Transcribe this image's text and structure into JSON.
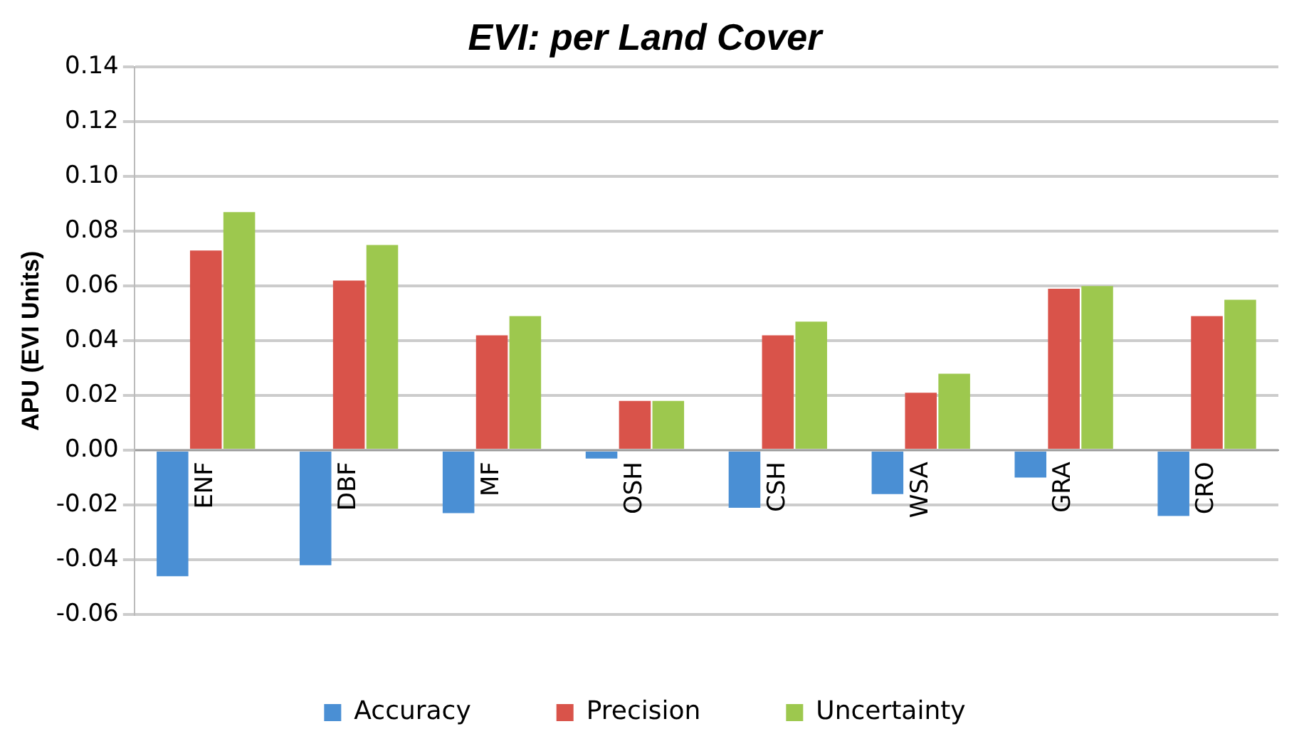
{
  "chart_data": {
    "type": "bar",
    "title": "EVI: per Land Cover",
    "ylabel": "APU (EVI Units)",
    "categories": [
      "ENF",
      "DBF",
      "MF",
      "OSH",
      "CSH",
      "WSA",
      "GRA",
      "CRO"
    ],
    "series": [
      {
        "name": "Accuracy",
        "color": "#4a8fd4",
        "values": [
          -0.046,
          -0.042,
          -0.023,
          -0.003,
          -0.021,
          -0.016,
          -0.01,
          -0.024
        ]
      },
      {
        "name": "Precision",
        "color": "#d9534a",
        "values": [
          0.073,
          0.062,
          0.042,
          0.018,
          0.042,
          0.021,
          0.059,
          0.049
        ]
      },
      {
        "name": "Uncertainty",
        "color": "#9dc84e",
        "values": [
          0.087,
          0.075,
          0.049,
          0.018,
          0.047,
          0.028,
          0.06,
          0.055
        ]
      }
    ],
    "ylim": [
      -0.06,
      0.14
    ],
    "yticks": [
      {
        "value": -0.06,
        "label": "-0.06"
      },
      {
        "value": -0.04,
        "label": "-0.04"
      },
      {
        "value": -0.02,
        "label": "-0.02"
      },
      {
        "value": 0,
        "label": "0.00"
      },
      {
        "value": 0.02,
        "label": "0.02"
      },
      {
        "value": 0.04,
        "label": "0.04"
      },
      {
        "value": 0.06,
        "label": "0.06"
      },
      {
        "value": 0.08,
        "label": "0.08"
      },
      {
        "value": 0.1,
        "label": "0.10"
      },
      {
        "value": 0.12,
        "label": "0.12"
      },
      {
        "value": 0.14,
        "label": "0.14"
      }
    ],
    "grid": "y",
    "legend": "bottom"
  }
}
